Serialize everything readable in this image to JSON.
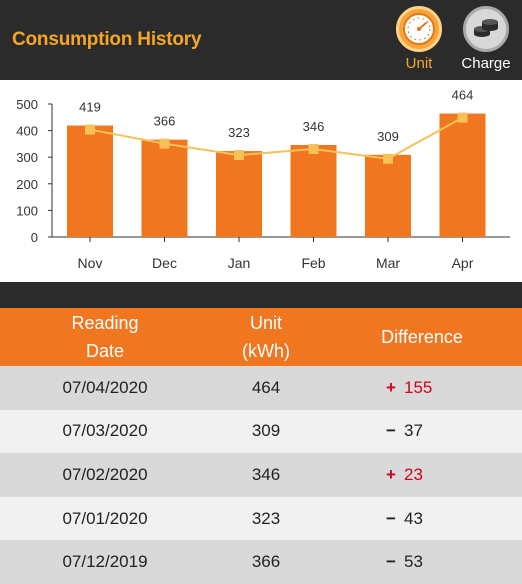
{
  "header": {
    "title": "Consumption History",
    "buttons": [
      {
        "label": "Unit",
        "icon": "gauge-icon",
        "active": true
      },
      {
        "label": "Charge",
        "icon": "coins-icon",
        "active": false
      }
    ]
  },
  "chart_data": {
    "type": "bar",
    "categories": [
      "Nov",
      "Dec",
      "Jan",
      "Feb",
      "Mar",
      "Apr"
    ],
    "values": [
      419,
      366,
      323,
      346,
      309,
      464
    ],
    "data_labels": [
      "419",
      "366",
      "323",
      "346",
      "309",
      "464"
    ],
    "ylim": [
      0,
      500
    ],
    "yticks": [
      0,
      100,
      200,
      300,
      400,
      500
    ],
    "title": "",
    "xlabel": "",
    "ylabel": "",
    "overlay": "line",
    "bar_color": "#f07620",
    "line_color": "#f7c15a",
    "grid": false
  },
  "table": {
    "headers": [
      "Reading\nDate",
      "Unit\n(kWh)",
      "Difference"
    ],
    "rows": [
      {
        "date": "07/04/2020",
        "unit": "464",
        "sign": "+",
        "diff": "155"
      },
      {
        "date": "07/03/2020",
        "unit": "309",
        "sign": "−",
        "diff": "37"
      },
      {
        "date": "07/02/2020",
        "unit": "346",
        "sign": "+",
        "diff": "23"
      },
      {
        "date": "07/01/2020",
        "unit": "323",
        "sign": "−",
        "diff": "43"
      },
      {
        "date": "07/12/2019",
        "unit": "366",
        "sign": "−",
        "diff": "53"
      }
    ]
  },
  "colors": {
    "header_bg": "#2b2b2b",
    "accent": "#f5a623",
    "table_header_bg": "#f07620",
    "increase": "#d0021b"
  }
}
